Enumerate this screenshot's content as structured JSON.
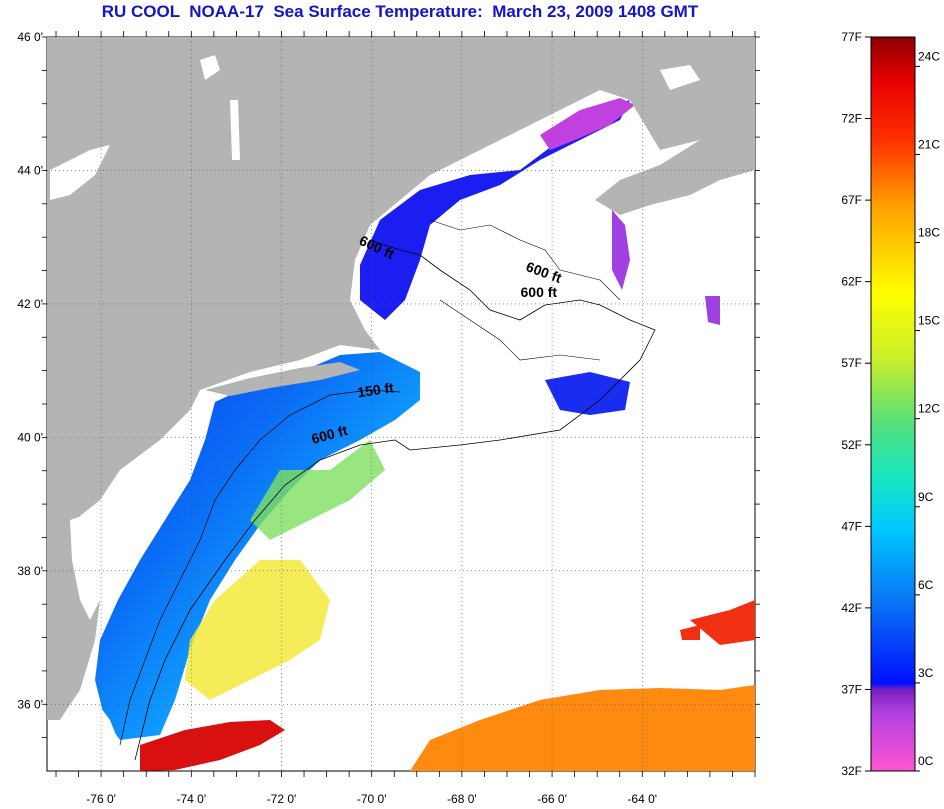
{
  "title": "RU COOL  NOAA-17  Sea Surface Temperature:  March 23, 2009 1408 GMT",
  "map": {
    "lat_labels": [
      "46 0'",
      "44 0'",
      "42 0'",
      "40 0'",
      "38 0'",
      "36 0'"
    ],
    "lon_labels": [
      "-76 0'",
      "-74 0'",
      "-72 0'",
      "-70 0'",
      "-68 0'",
      "-66 0'",
      "-64 0'"
    ],
    "lat_range": [
      35,
      46
    ],
    "lon_range": [
      -77.2,
      -61.5
    ],
    "isobath_labels": [
      {
        "text": "600 ft",
        "lon": -70.3,
        "lat": 42.9,
        "rot": 25
      },
      {
        "text": "600 ft",
        "lon": -66.6,
        "lat": 42.5,
        "rot": 20
      },
      {
        "text": "600 ft",
        "lon": -66.7,
        "lat": 42.1,
        "rot": 0
      },
      {
        "text": "150 ft",
        "lon": -70.3,
        "lat": 40.6,
        "rot": -8
      },
      {
        "text": "600 ft",
        "lon": -71.3,
        "lat": 39.9,
        "rot": -15
      }
    ],
    "colors": {
      "land": "#b4b4b4",
      "ocean": "#ffffff",
      "grid": "#555555",
      "coast": "#000000"
    }
  },
  "colorbar": {
    "f_labels": [
      "77F",
      "72F",
      "67F",
      "62F",
      "57F",
      "52F",
      "47F",
      "42F",
      "37F",
      "32F"
    ],
    "c_labels": [
      "24C",
      "21C",
      "18C",
      "15C",
      "12C",
      "9C",
      "6C",
      "3C",
      "0C"
    ],
    "f_range": [
      32,
      77
    ],
    "stops": [
      "#ff55d2",
      "#b040e0",
      "#7a1fc0",
      "#0010ff",
      "#0a6cf5",
      "#00c8ff",
      "#17e8c0",
      "#52e080",
      "#c8ee2a",
      "#ffff00",
      "#ffa000",
      "#ff3000",
      "#e80000",
      "#8c0000"
    ]
  }
}
